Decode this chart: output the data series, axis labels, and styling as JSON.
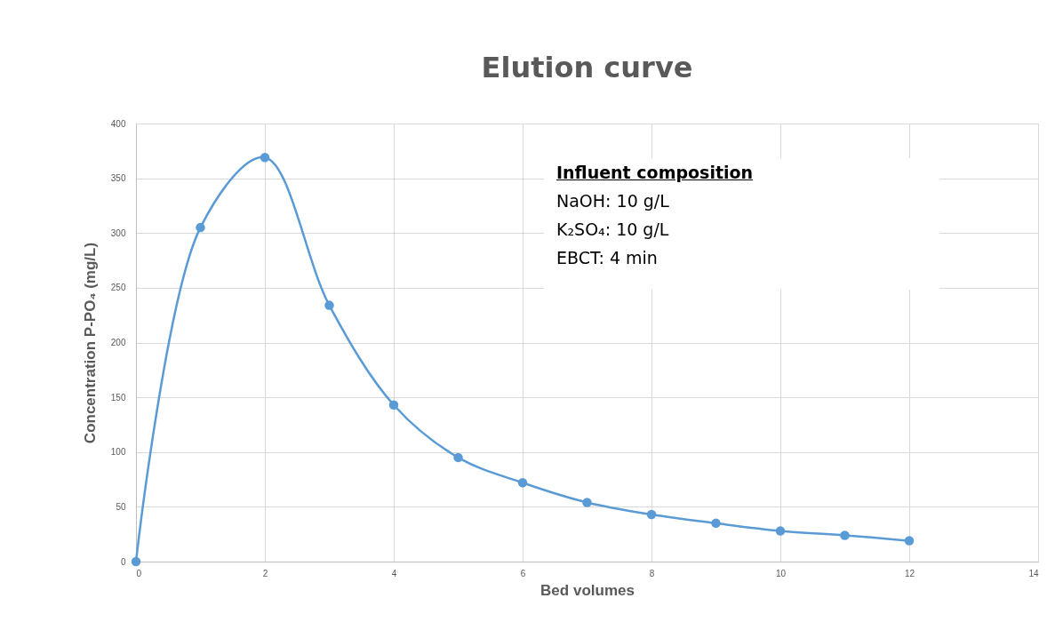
{
  "chart_data": {
    "type": "line",
    "title": "Elution curve",
    "xlabel": "Bed volumes",
    "ylabel": "Concentration P-PO₄ (mg/L)",
    "x": [
      0,
      1,
      2,
      3,
      4,
      5,
      6,
      7,
      8,
      9,
      10,
      11,
      12
    ],
    "series": [
      {
        "color": "#5b9bd5",
        "values": [
          0,
          305,
          369,
          234,
          143,
          95,
          72,
          54,
          43,
          35,
          28,
          24,
          19
        ]
      }
    ],
    "xlim": [
      0,
      14
    ],
    "xticks": [
      0,
      2,
      4,
      6,
      8,
      10,
      12,
      14
    ],
    "ylim": [
      0,
      400
    ],
    "yticks": [
      0,
      50,
      100,
      150,
      200,
      250,
      300,
      350,
      400
    ],
    "grid": true,
    "marker": "circle",
    "line_style": "solid",
    "legend": false,
    "annotations": [
      "Influent composition",
      "NaOH: 10 g/L",
      "K₂SO₄: 10 g/L",
      "EBCT: 4 min"
    ]
  }
}
